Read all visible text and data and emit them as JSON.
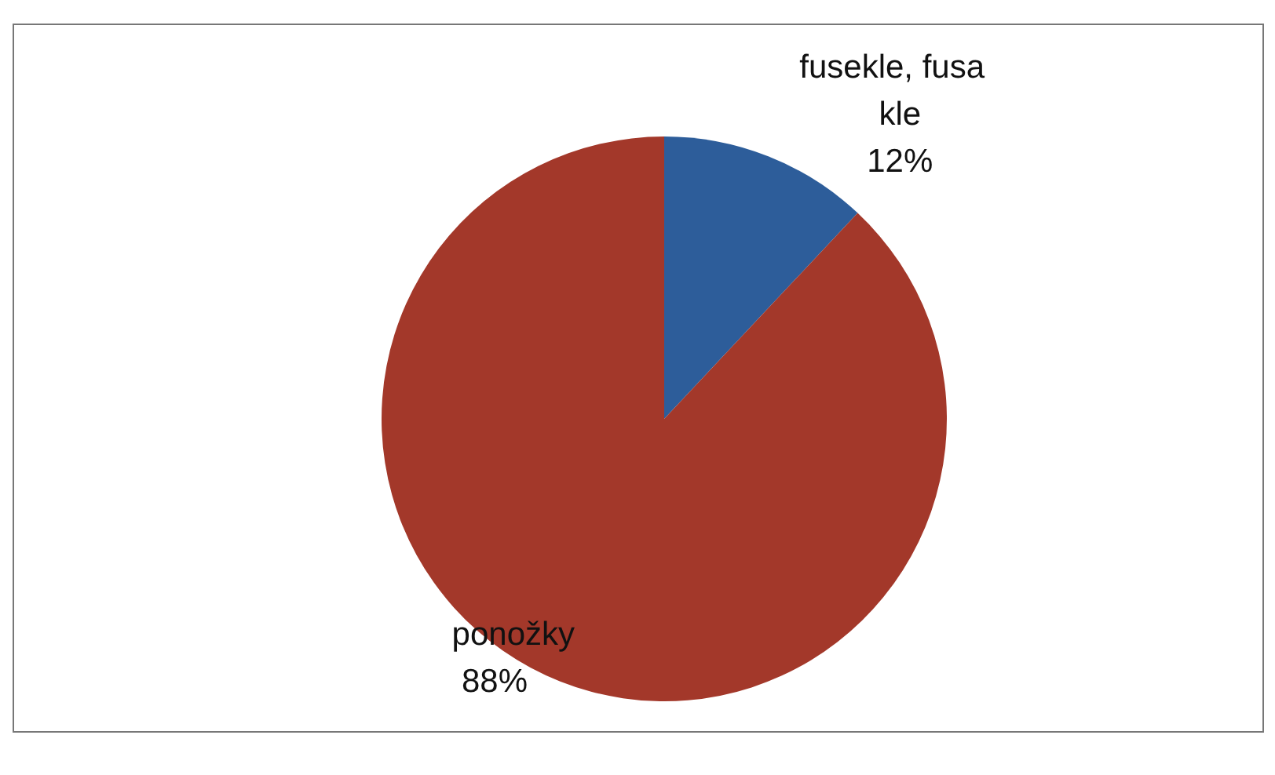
{
  "chart_data": {
    "type": "pie",
    "categories": [
      "fusekle, fusakle",
      "ponožky"
    ],
    "values": [
      12,
      88
    ],
    "value_labels": [
      "12%",
      "88%"
    ],
    "colors": [
      "#2d5d9a",
      "#a3382a"
    ]
  }
}
